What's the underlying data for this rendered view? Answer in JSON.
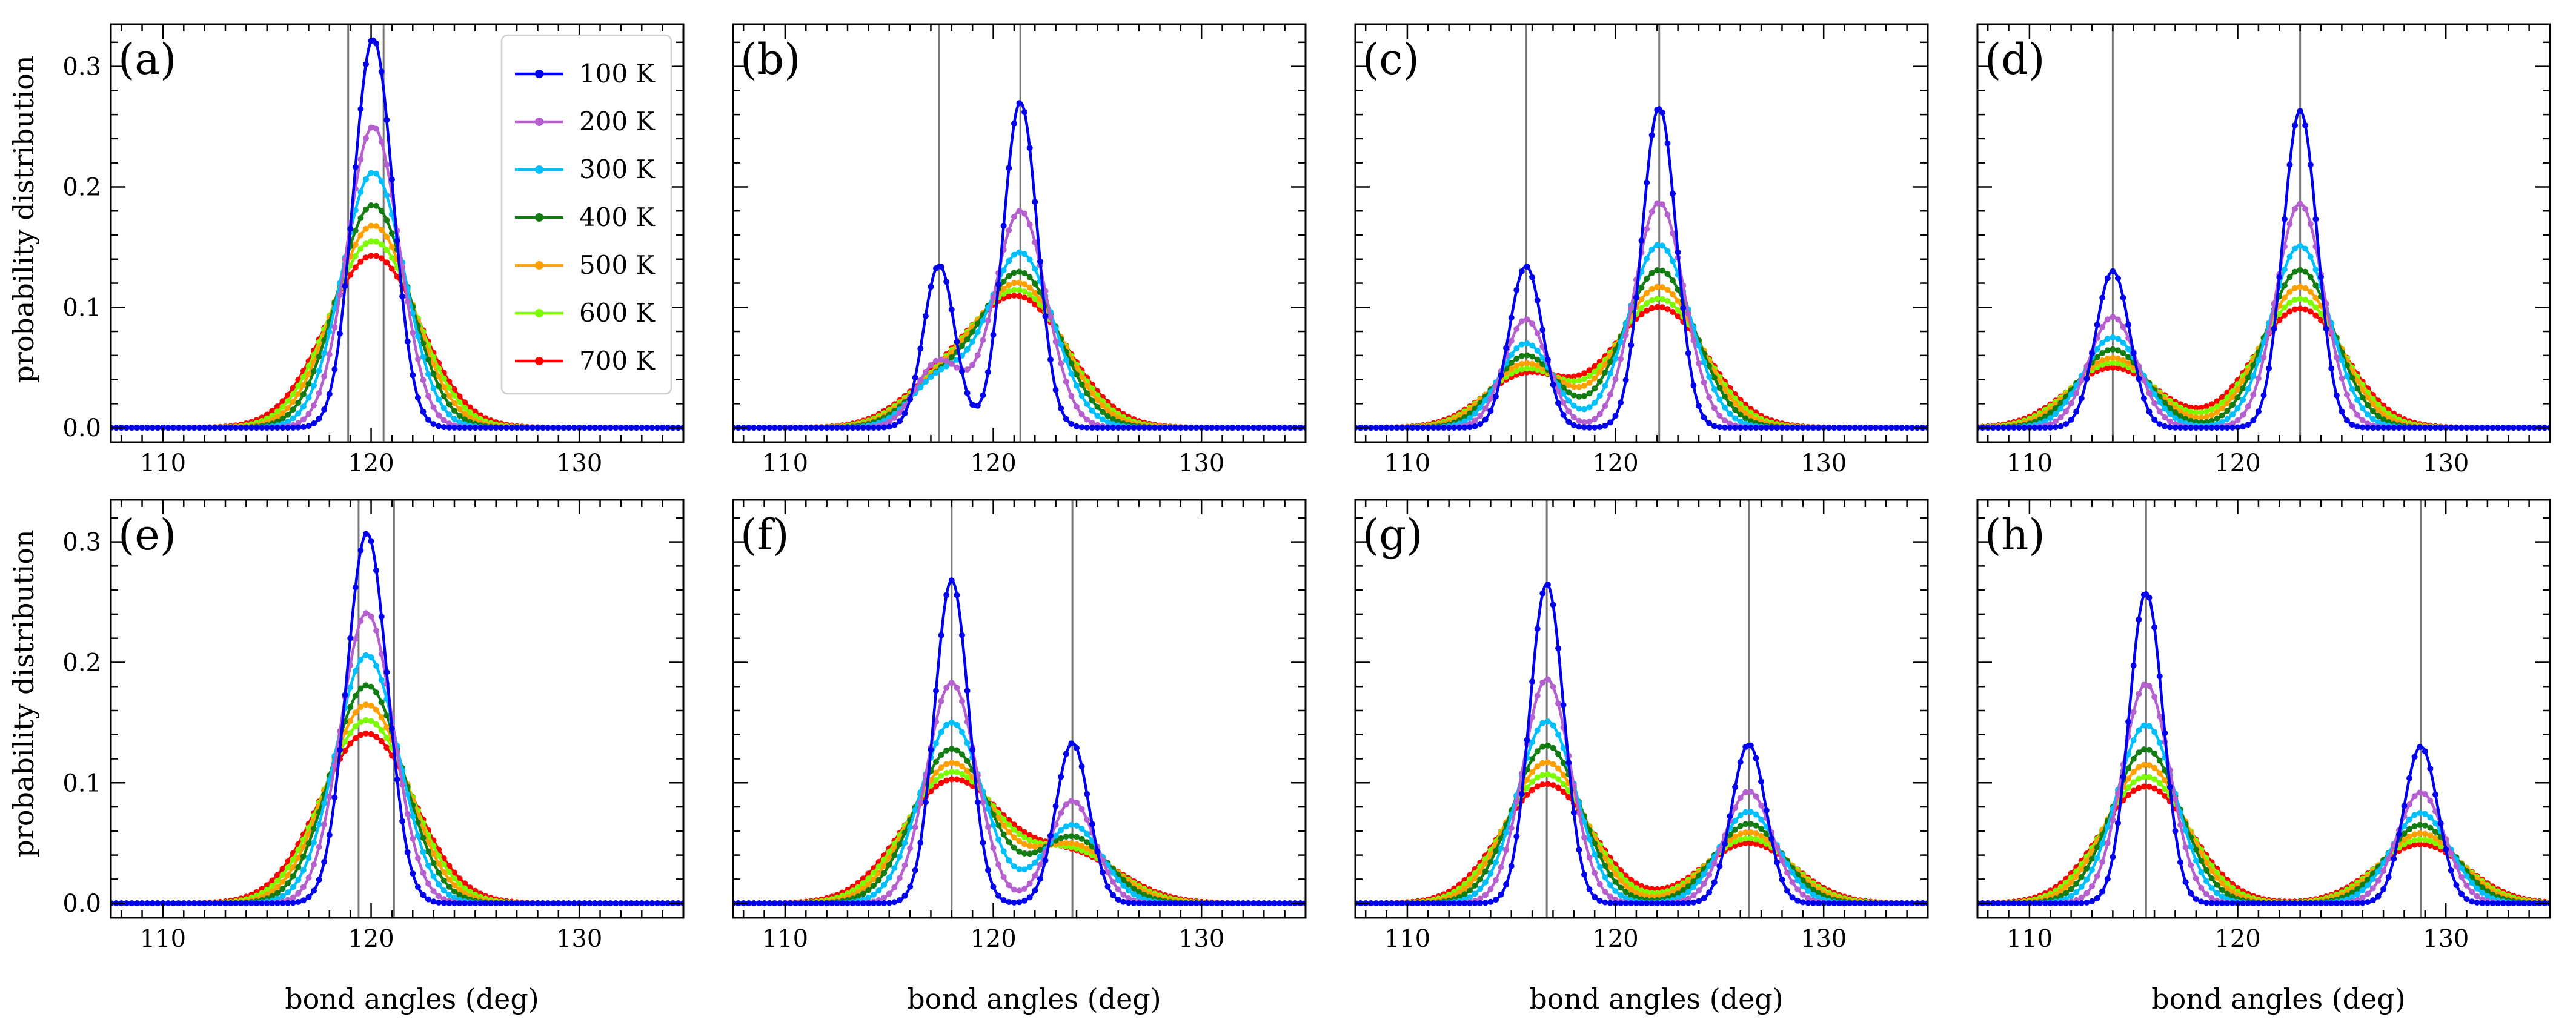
{
  "figure": {
    "ylabel": "probability distribution",
    "xlabel": "bond angles (deg)",
    "legend_placement": "top-right of panel (a)"
  },
  "chart_data": {
    "type": "line",
    "x_range": [
      107.5,
      135
    ],
    "x_ticks": [
      110,
      120,
      130
    ],
    "y_range": [
      -0.012,
      0.335
    ],
    "y_ticks": [
      0.0,
      0.1,
      0.2,
      0.3
    ],
    "y_tick_labels": [
      "0.0",
      "0.1",
      "0.2",
      "0.3"
    ],
    "grid": false,
    "series": [
      {
        "name": "100 K",
        "color": "#0000ee"
      },
      {
        "name": "200 K",
        "color": "#b65fcf"
      },
      {
        "name": "300 K",
        "color": "#00bfff"
      },
      {
        "name": "400 K",
        "color": "#137d13"
      },
      {
        "name": "500 K",
        "color": "#ffa000"
      },
      {
        "name": "600 K",
        "color": "#7cfc00"
      },
      {
        "name": "700 K",
        "color": "#ff0000"
      }
    ],
    "panels": [
      {
        "label": "(a)",
        "vlines": [
          118.9,
          120.6
        ],
        "peaks": [
          {
            "center": 120.1,
            "heights": [
              0.323,
              0.25,
              0.212,
              0.185,
              0.168,
              0.155,
              0.143
            ],
            "sigmas": [
              0.95,
              1.25,
              1.5,
              1.72,
              1.9,
              2.08,
              2.25
            ]
          }
        ]
      },
      {
        "label": "(b)",
        "vlines": [
          117.4,
          121.3
        ],
        "peaks": [
          {
            "center": 117.4,
            "heights": [
              0.135,
              0.055,
              0.04,
              0.035,
              0.032,
              0.03,
              0.028
            ],
            "sigmas": [
              0.75,
              1.1,
              1.35,
              1.55,
              1.7,
              1.85,
              2.0
            ]
          },
          {
            "center": 121.3,
            "heights": [
              0.27,
              0.18,
              0.145,
              0.128,
              0.118,
              0.111,
              0.105
            ],
            "sigmas": [
              0.82,
              1.25,
              1.6,
              1.85,
              2.05,
              2.2,
              2.35
            ]
          }
        ]
      },
      {
        "label": "(c)",
        "vlines": [
          115.7,
          122.1
        ],
        "peaks": [
          {
            "center": 115.7,
            "heights": [
              0.134,
              0.09,
              0.07,
              0.06,
              0.053,
              0.048,
              0.044
            ],
            "sigmas": [
              0.8,
              1.05,
              1.3,
              1.5,
              1.7,
              1.85,
              2.0
            ]
          },
          {
            "center": 122.1,
            "heights": [
              0.266,
              0.187,
              0.152,
              0.131,
              0.117,
              0.107,
              0.1
            ],
            "sigmas": [
              0.82,
              1.2,
              1.5,
              1.75,
              1.95,
              2.12,
              2.28
            ]
          }
        ]
      },
      {
        "label": "(d)",
        "vlines": [
          114.0,
          123.0
        ],
        "peaks": [
          {
            "center": 114.0,
            "heights": [
              0.13,
              0.092,
              0.075,
              0.065,
              0.058,
              0.054,
              0.05
            ],
            "sigmas": [
              0.82,
              1.15,
              1.42,
              1.65,
              1.85,
              2.02,
              2.18
            ]
          },
          {
            "center": 123.0,
            "heights": [
              0.263,
              0.186,
              0.151,
              0.131,
              0.117,
              0.107,
              0.099
            ],
            "sigmas": [
              0.82,
              1.15,
              1.42,
              1.65,
              1.85,
              2.02,
              2.18
            ]
          }
        ]
      },
      {
        "label": "(e)",
        "vlines": [
          119.4,
          121.1
        ],
        "peaks": [
          {
            "center": 119.8,
            "heights": [
              0.307,
              0.241,
              0.206,
              0.181,
              0.165,
              0.152,
              0.141
            ],
            "sigmas": [
              0.98,
              1.27,
              1.52,
              1.74,
              1.92,
              2.1,
              2.27
            ]
          }
        ]
      },
      {
        "label": "(f)",
        "vlines": [
          118.0,
          123.8
        ],
        "peaks": [
          {
            "center": 118.0,
            "heights": [
              0.268,
              0.183,
              0.15,
              0.128,
              0.116,
              0.108,
              0.101
            ],
            "sigmas": [
              0.82,
              1.2,
              1.52,
              1.8,
              2.0,
              2.2,
              2.38
            ]
          },
          {
            "center": 123.8,
            "heights": [
              0.133,
              0.085,
              0.065,
              0.055,
              0.048,
              0.043,
              0.04
            ],
            "sigmas": [
              0.8,
              1.1,
              1.42,
              1.7,
              1.95,
              2.15,
              2.35
            ]
          }
        ]
      },
      {
        "label": "(g)",
        "vlines": [
          116.7,
          126.4
        ],
        "peaks": [
          {
            "center": 116.7,
            "heights": [
              0.265,
              0.186,
              0.151,
              0.131,
              0.117,
              0.107,
              0.099
            ],
            "sigmas": [
              0.82,
              1.15,
              1.42,
              1.65,
              1.85,
              2.02,
              2.18
            ]
          },
          {
            "center": 126.4,
            "heights": [
              0.132,
              0.093,
              0.076,
              0.066,
              0.059,
              0.054,
              0.05
            ],
            "sigmas": [
              0.82,
              1.15,
              1.42,
              1.65,
              1.85,
              2.02,
              2.18
            ]
          }
        ]
      },
      {
        "label": "(h)",
        "vlines": [
          115.6,
          128.8
        ],
        "peaks": [
          {
            "center": 115.6,
            "heights": [
              0.258,
              0.182,
              0.148,
              0.128,
              0.115,
              0.105,
              0.097
            ],
            "sigmas": [
              0.82,
              1.15,
              1.42,
              1.65,
              1.85,
              2.02,
              2.18
            ]
          },
          {
            "center": 128.8,
            "heights": [
              0.13,
              0.092,
              0.075,
              0.065,
              0.058,
              0.053,
              0.049
            ],
            "sigmas": [
              0.82,
              1.15,
              1.42,
              1.65,
              1.85,
              2.02,
              2.18
            ]
          }
        ]
      }
    ]
  }
}
